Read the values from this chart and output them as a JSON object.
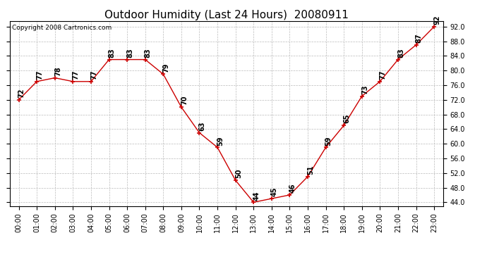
{
  "title": "Outdoor Humidity (Last 24 Hours)  20080911",
  "copyright": "Copyright 2008 Cartronics.com",
  "hours": [
    0,
    1,
    2,
    3,
    4,
    5,
    6,
    7,
    8,
    9,
    10,
    11,
    12,
    13,
    14,
    15,
    16,
    17,
    18,
    19,
    20,
    21,
    22,
    23
  ],
  "values": [
    72,
    77,
    78,
    77,
    77,
    83,
    83,
    83,
    79,
    70,
    63,
    59,
    50,
    44,
    45,
    46,
    51,
    59,
    65,
    73,
    77,
    83,
    87,
    92
  ],
  "x_labels": [
    "00:00",
    "01:00",
    "02:00",
    "03:00",
    "04:00",
    "05:00",
    "06:00",
    "07:00",
    "08:00",
    "09:00",
    "10:00",
    "11:00",
    "12:00",
    "13:00",
    "14:00",
    "15:00",
    "16:00",
    "17:00",
    "18:00",
    "19:00",
    "20:00",
    "21:00",
    "22:00",
    "23:00"
  ],
  "y_ticks": [
    44.0,
    48.0,
    52.0,
    56.0,
    60.0,
    64.0,
    68.0,
    72.0,
    76.0,
    80.0,
    84.0,
    88.0,
    92.0
  ],
  "ylim": [
    43,
    93.5
  ],
  "xlim": [
    -0.5,
    23.5
  ],
  "line_color": "#cc0000",
  "marker_color": "#cc0000",
  "bg_color": "#ffffff",
  "grid_color": "#bbbbbb",
  "title_fontsize": 11,
  "label_fontsize": 7,
  "tick_fontsize": 7,
  "copyright_fontsize": 6.5
}
